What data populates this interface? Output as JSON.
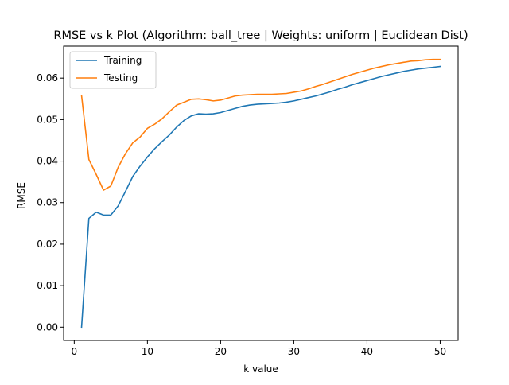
{
  "chart_data": {
    "type": "line",
    "title": "RMSE vs k Plot (Algorithm: ball_tree | Weights: uniform | Euclidean Dist)",
    "xlabel": "k value",
    "ylabel": "RMSE",
    "xlim": [
      -1.45,
      52.45
    ],
    "ylim": [
      -0.0032,
      0.0677
    ],
    "xticks": [
      0,
      10,
      20,
      30,
      40,
      50
    ],
    "yticks": [
      0.0,
      0.01,
      0.02,
      0.03,
      0.04,
      0.05,
      0.06
    ],
    "xtick_labels": [
      "0",
      "10",
      "20",
      "30",
      "40",
      "50"
    ],
    "ytick_labels": [
      "0.00",
      "0.01",
      "0.02",
      "0.03",
      "0.04",
      "0.05",
      "0.06"
    ],
    "grid": false,
    "legend_position": "upper-left",
    "x": [
      1,
      2,
      3,
      4,
      5,
      6,
      7,
      8,
      9,
      10,
      11,
      12,
      13,
      14,
      15,
      16,
      17,
      18,
      19,
      20,
      21,
      22,
      23,
      24,
      25,
      26,
      27,
      28,
      29,
      30,
      31,
      32,
      33,
      34,
      35,
      36,
      37,
      38,
      39,
      40,
      41,
      42,
      43,
      44,
      45,
      46,
      47,
      48,
      49,
      50
    ],
    "series": [
      {
        "name": "Training",
        "color": "#1f77b4",
        "values": [
          0.0,
          0.0262,
          0.0277,
          0.027,
          0.027,
          0.0292,
          0.0327,
          0.0363,
          0.0388,
          0.041,
          0.043,
          0.0447,
          0.0463,
          0.0482,
          0.0498,
          0.0509,
          0.0514,
          0.0513,
          0.0514,
          0.0517,
          0.0522,
          0.0527,
          0.0532,
          0.0535,
          0.0537,
          0.0538,
          0.0539,
          0.054,
          0.0542,
          0.0545,
          0.0549,
          0.0553,
          0.0557,
          0.0562,
          0.0567,
          0.0573,
          0.0578,
          0.0584,
          0.0589,
          0.0594,
          0.0599,
          0.0604,
          0.0608,
          0.0612,
          0.0616,
          0.0619,
          0.0622,
          0.0624,
          0.0626,
          0.0628
        ]
      },
      {
        "name": "Testing",
        "color": "#ff7f0e",
        "values": [
          0.0558,
          0.0404,
          0.0368,
          0.033,
          0.034,
          0.0385,
          0.0418,
          0.0444,
          0.0458,
          0.0479,
          0.0489,
          0.0502,
          0.0519,
          0.0535,
          0.0542,
          0.0549,
          0.055,
          0.0548,
          0.0545,
          0.0547,
          0.0552,
          0.0557,
          0.0559,
          0.056,
          0.0561,
          0.0561,
          0.0561,
          0.0562,
          0.0563,
          0.0566,
          0.0569,
          0.0574,
          0.058,
          0.0585,
          0.0591,
          0.0597,
          0.0603,
          0.0609,
          0.0614,
          0.0619,
          0.0624,
          0.0628,
          0.0632,
          0.0635,
          0.0638,
          0.0641,
          0.0642,
          0.0644,
          0.0645,
          0.0645
        ]
      }
    ]
  }
}
